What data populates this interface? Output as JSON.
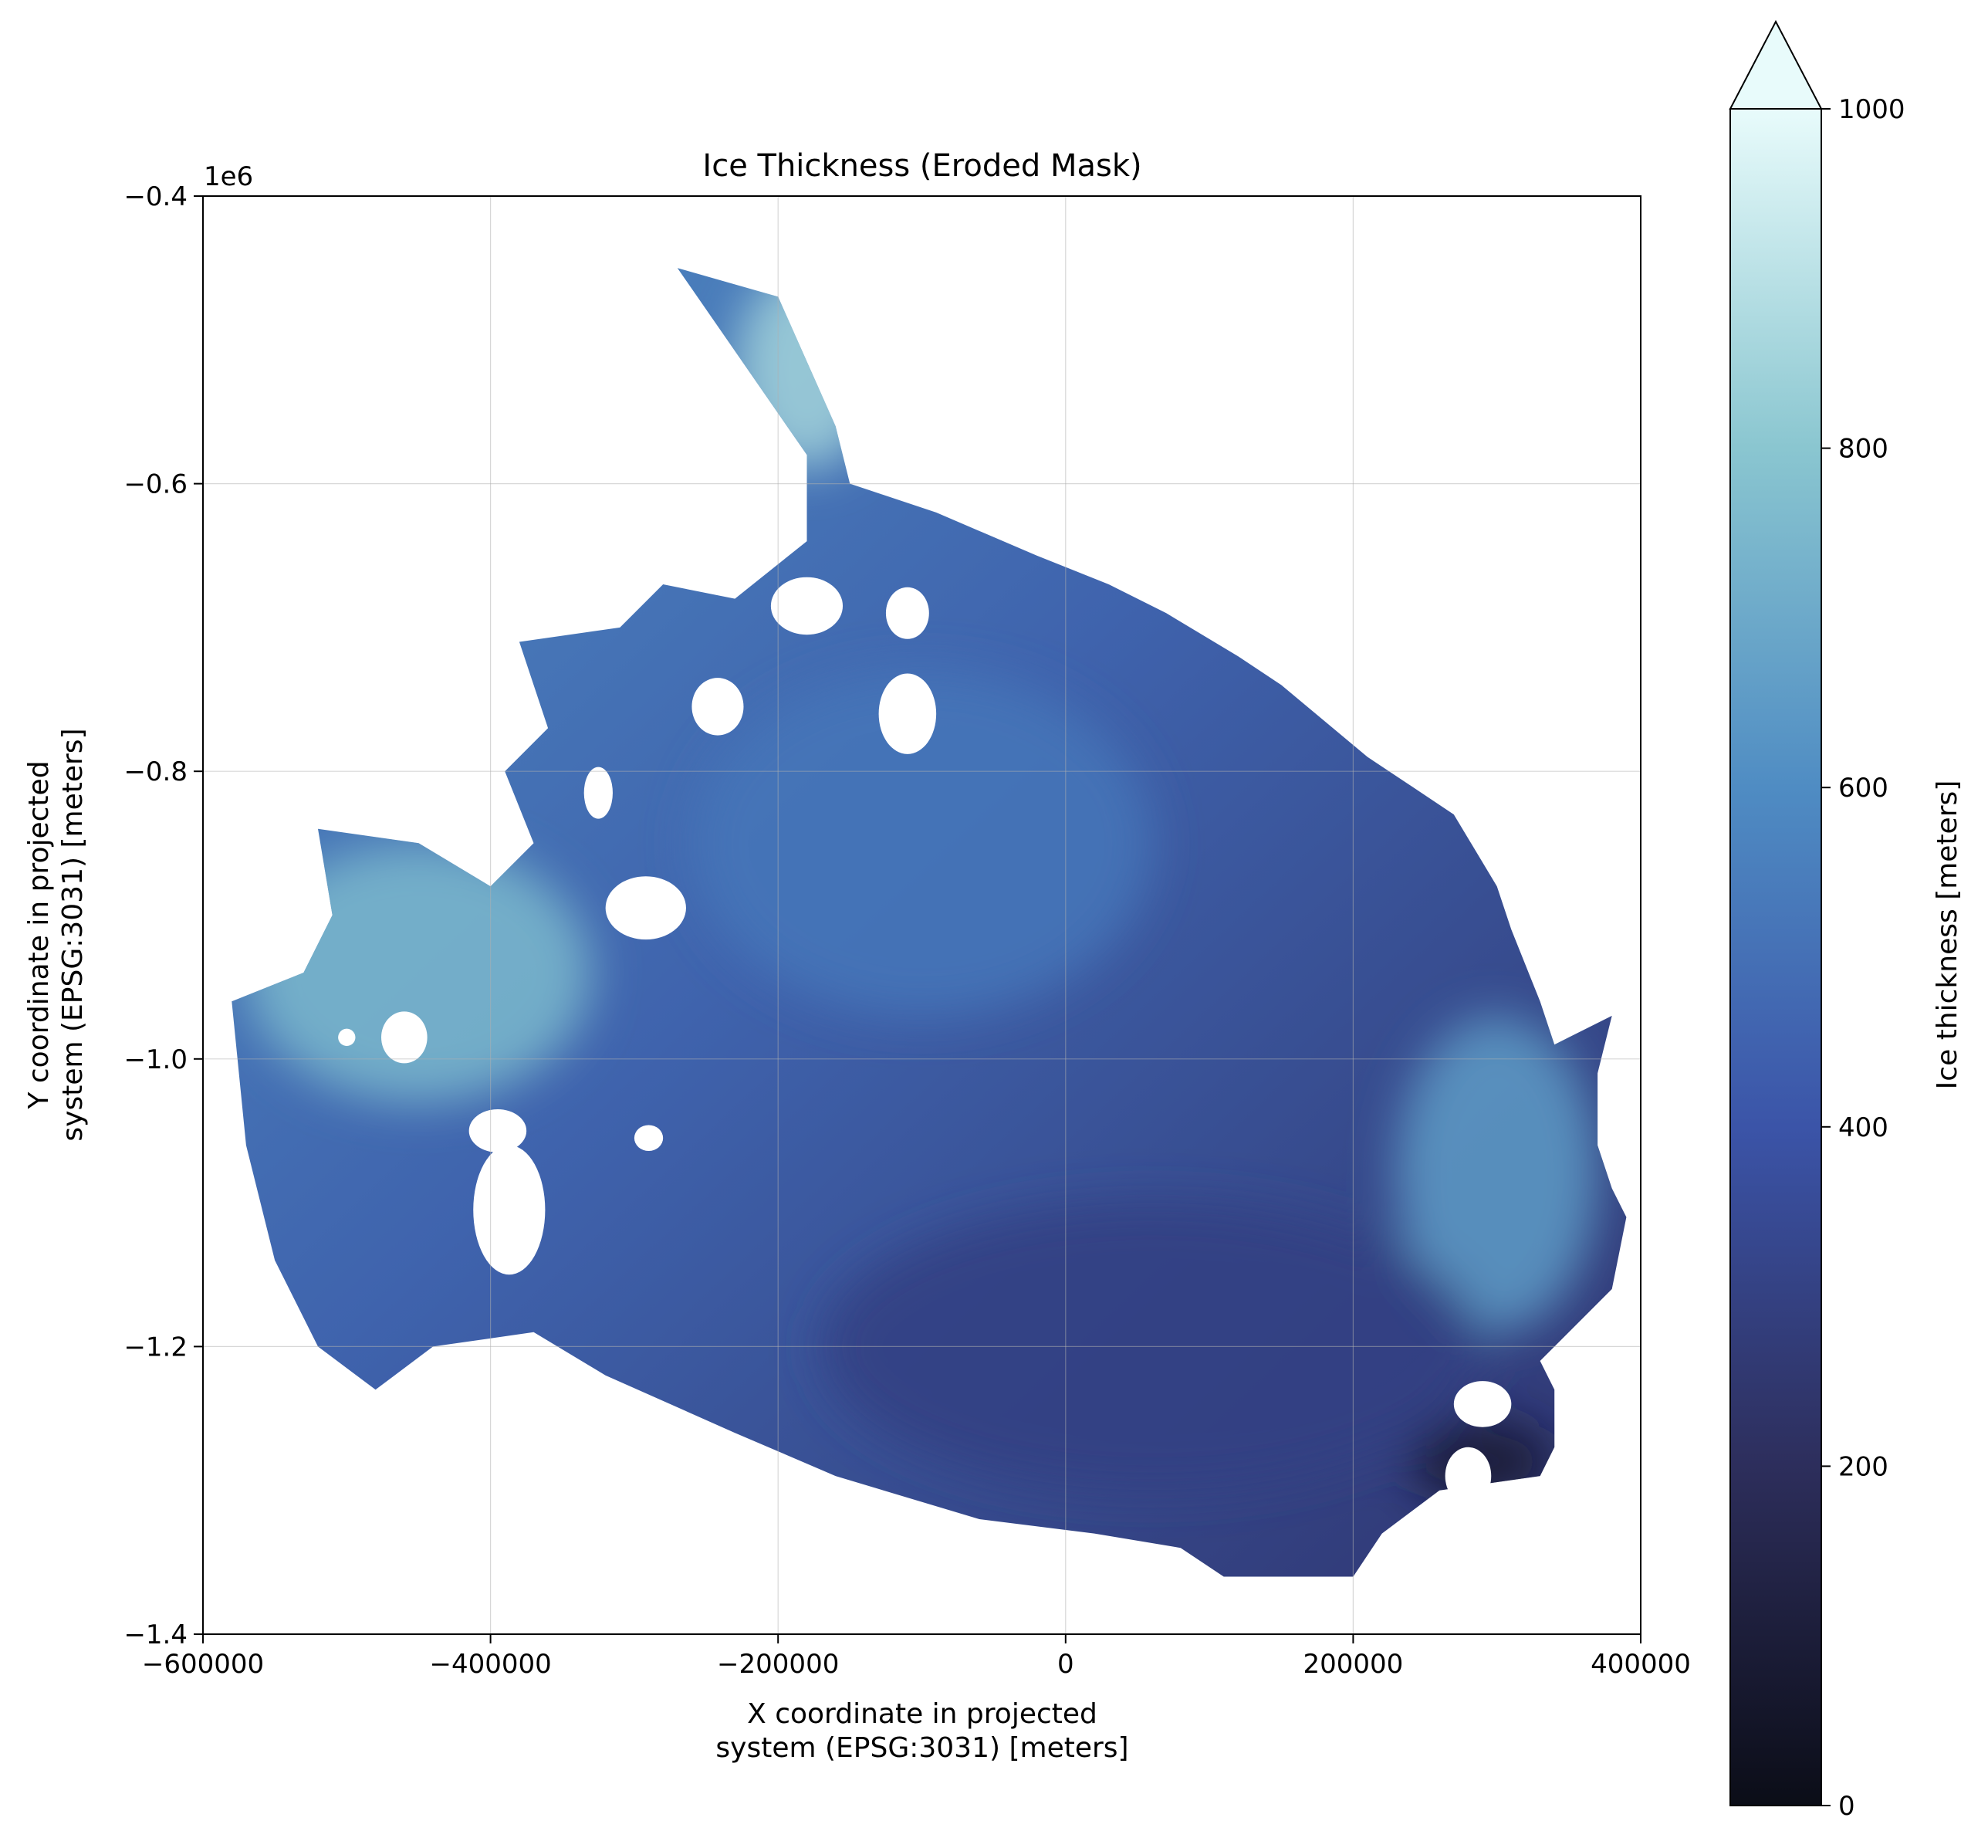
{
  "chart_data": {
    "type": "heatmap",
    "title": "Ice Thickness (Eroded Mask)",
    "xlabel_line1": "X coordinate in projected",
    "xlabel_line2": "system (EPSG:3031) [meters]",
    "ylabel_line1": "Y coordinate in projected",
    "ylabel_line2": "system (EPSG:3031) [meters]",
    "xlim": [
      -600000,
      400000
    ],
    "ylim": [
      -1400000,
      -400000
    ],
    "y_offset_label": "1e6",
    "xticks": [
      -600000,
      -400000,
      -200000,
      0,
      200000,
      400000
    ],
    "xtick_labels": [
      "−600000",
      "−400000",
      "−200000",
      "0",
      "200000",
      "400000"
    ],
    "yticks": [
      -1400000,
      -1200000,
      -1000000,
      -800000,
      -600000,
      -400000
    ],
    "ytick_labels": [
      "−1.4",
      "−1.2",
      "−1.0",
      "−0.8",
      "−0.6",
      "−0.4"
    ],
    "grid": true,
    "colorbar": {
      "label": "Ice thickness [meters]",
      "range": [
        0,
        1000
      ],
      "extend": "max",
      "ticks": [
        0,
        200,
        400,
        600,
        800,
        1000
      ],
      "tick_labels": [
        "0",
        "200",
        "400",
        "600",
        "800",
        "1000"
      ],
      "colors": [
        "#0b0d17",
        "#2d2e5c",
        "#3b54a8",
        "#4f8cc3",
        "#8ac6d0",
        "#e8fbfb"
      ]
    },
    "region_outline": [
      [
        -270000,
        -450000
      ],
      [
        -200000,
        -470000
      ],
      [
        -160000,
        -560000
      ],
      [
        -150000,
        -600000
      ],
      [
        -90000,
        -620000
      ],
      [
        -20000,
        -650000
      ],
      [
        30000,
        -670000
      ],
      [
        70000,
        -690000
      ],
      [
        120000,
        -720000
      ],
      [
        150000,
        -740000
      ],
      [
        210000,
        -790000
      ],
      [
        240000,
        -810000
      ],
      [
        270000,
        -830000
      ],
      [
        300000,
        -880000
      ],
      [
        310000,
        -910000
      ],
      [
        330000,
        -960000
      ],
      [
        340000,
        -990000
      ],
      [
        380000,
        -970000
      ],
      [
        370000,
        -1010000
      ],
      [
        370000,
        -1060000
      ],
      [
        380000,
        -1090000
      ],
      [
        390000,
        -1110000
      ],
      [
        380000,
        -1160000
      ],
      [
        360000,
        -1180000
      ],
      [
        330000,
        -1210000
      ],
      [
        340000,
        -1230000
      ],
      [
        340000,
        -1270000
      ],
      [
        330000,
        -1290000
      ],
      [
        260000,
        -1300000
      ],
      [
        220000,
        -1330000
      ],
      [
        200000,
        -1360000
      ],
      [
        110000,
        -1360000
      ],
      [
        80000,
        -1340000
      ],
      [
        20000,
        -1330000
      ],
      [
        -60000,
        -1320000
      ],
      [
        -160000,
        -1290000
      ],
      [
        -230000,
        -1260000
      ],
      [
        -320000,
        -1220000
      ],
      [
        -370000,
        -1190000
      ],
      [
        -440000,
        -1200000
      ],
      [
        -480000,
        -1230000
      ],
      [
        -520000,
        -1200000
      ],
      [
        -550000,
        -1140000
      ],
      [
        -570000,
        -1060000
      ],
      [
        -580000,
        -960000
      ],
      [
        -530000,
        -940000
      ],
      [
        -510000,
        -900000
      ],
      [
        -520000,
        -840000
      ],
      [
        -450000,
        -850000
      ],
      [
        -400000,
        -880000
      ],
      [
        -370000,
        -850000
      ],
      [
        -390000,
        -800000
      ],
      [
        -360000,
        -770000
      ],
      [
        -380000,
        -710000
      ],
      [
        -310000,
        -700000
      ],
      [
        -280000,
        -670000
      ],
      [
        -230000,
        -680000
      ],
      [
        -180000,
        -640000
      ],
      [
        -180000,
        -580000
      ]
    ],
    "holes": [
      {
        "type": "ellipse",
        "cx": -387000,
        "cy": -1105000,
        "rx": 25000,
        "ry": 45000
      },
      {
        "type": "ellipse",
        "cx": -395000,
        "cy": -1050000,
        "rx": 20000,
        "ry": 15000
      },
      {
        "type": "ellipse",
        "cx": -292000,
        "cy": -895000,
        "rx": 28000,
        "ry": 22000
      },
      {
        "type": "ellipse",
        "cx": -242000,
        "cy": -755000,
        "rx": 18000,
        "ry": 20000
      },
      {
        "type": "ellipse",
        "cx": -180000,
        "cy": -685000,
        "rx": 25000,
        "ry": 20000
      },
      {
        "type": "ellipse",
        "cx": -110000,
        "cy": -690000,
        "rx": 15000,
        "ry": 18000
      },
      {
        "type": "ellipse",
        "cx": -110000,
        "cy": -760000,
        "rx": 20000,
        "ry": 28000
      },
      {
        "type": "ellipse",
        "cx": -325000,
        "cy": -815000,
        "rx": 10000,
        "ry": 18000
      },
      {
        "type": "ellipse",
        "cx": -460000,
        "cy": -985000,
        "rx": 16000,
        "ry": 18000
      },
      {
        "type": "ellipse",
        "cx": -500000,
        "cy": -985000,
        "rx": 6000,
        "ry": 6000
      },
      {
        "type": "ellipse",
        "cx": 290000,
        "cy": -1240000,
        "rx": 20000,
        "ry": 16000
      },
      {
        "type": "ellipse",
        "cx": 280000,
        "cy": -1290000,
        "rx": 16000,
        "ry": 20000
      },
      {
        "type": "ellipse",
        "cx": -290000,
        "cy": -1055000,
        "rx": 10000,
        "ry": 9000
      }
    ],
    "colored_regions": [
      {
        "type": "ellipse",
        "cx": -450000,
        "cy": -940000,
        "rx": 120000,
        "ry": 90000,
        "value": 750
      },
      {
        "type": "ellipse",
        "cx": -180000,
        "cy": -520000,
        "rx": 50000,
        "ry": 70000,
        "value": 850
      },
      {
        "type": "ellipse",
        "cx": 300000,
        "cy": -1080000,
        "rx": 70000,
        "ry": 110000,
        "value": 650
      },
      {
        "type": "ellipse",
        "cx": -100000,
        "cy": -850000,
        "rx": 160000,
        "ry": 120000,
        "value": 520
      },
      {
        "type": "ellipse",
        "cx": 60000,
        "cy": -1200000,
        "rx": 230000,
        "ry": 100000,
        "value": 300
      },
      {
        "type": "ellipse",
        "cx": 290000,
        "cy": -1280000,
        "rx": 50000,
        "ry": 30000,
        "value": 80
      }
    ]
  }
}
